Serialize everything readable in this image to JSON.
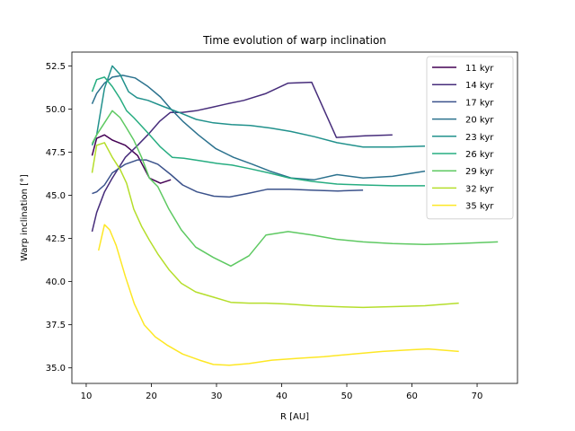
{
  "chart_data": {
    "type": "line",
    "title": "Time evolution of warp inclination",
    "xlabel": "R [AU]",
    "ylabel": "Warp inclination [°]",
    "xlim": [
      7.8,
      76.2
    ],
    "ylim": [
      34.1,
      53.3
    ],
    "xticks": [
      10,
      20,
      30,
      40,
      50,
      60,
      70
    ],
    "yticks": [
      35.0,
      37.5,
      40.0,
      42.5,
      45.0,
      47.5,
      50.0,
      52.5
    ],
    "xtick_labels": [
      "10",
      "20",
      "30",
      "40",
      "50",
      "60",
      "70"
    ],
    "ytick_labels": [
      "35.0",
      "37.5",
      "40.0",
      "42.5",
      "45.0",
      "47.5",
      "50.0",
      "52.5"
    ],
    "grid": false,
    "legend_position": "top-right",
    "series": [
      {
        "name": "11 kyr",
        "color": "#440154",
        "x": [
          10.9,
          11.6,
          12.8,
          14.0,
          16.0,
          17.9,
          19.7,
          21.4,
          23.0
        ],
        "y": [
          47.3,
          48.3,
          48.5,
          48.2,
          47.9,
          47.3,
          46.0,
          45.7,
          45.9
        ]
      },
      {
        "name": "14 kyr",
        "color": "#472d7b",
        "x": [
          10.9,
          11.6,
          12.8,
          14.0,
          16.0,
          17.9,
          19.7,
          21.3,
          22.9,
          24.7,
          26.9,
          29.3,
          31.6,
          34.2,
          37.6,
          41.0,
          44.6,
          48.4,
          52.8,
          57.0
        ],
        "y": [
          42.9,
          44.0,
          45.2,
          46.0,
          47.2,
          47.9,
          48.6,
          49.3,
          49.8,
          49.8,
          49.9,
          50.1,
          50.3,
          50.5,
          50.9,
          51.5,
          51.55,
          48.35,
          48.45,
          48.5
        ]
      },
      {
        "name": "17 kyr",
        "color": "#3b528b",
        "x": [
          10.9,
          11.6,
          12.8,
          14.0,
          16.0,
          17.9,
          19.2,
          21.0,
          23.0,
          24.8,
          27.0,
          29.6,
          32.0,
          34.7,
          37.8,
          41.2,
          44.5,
          48.6,
          52.5
        ],
        "y": [
          45.1,
          45.2,
          45.6,
          46.3,
          46.8,
          47.05,
          47.05,
          46.8,
          46.2,
          45.6,
          45.2,
          44.95,
          44.9,
          45.1,
          45.35,
          45.35,
          45.3,
          45.25,
          45.3
        ]
      },
      {
        "name": "20 kyr",
        "color": "#2c728e",
        "x": [
          10.9,
          11.6,
          12.8,
          14.0,
          15.6,
          17.5,
          19.5,
          21.4,
          23.0,
          24.8,
          27.2,
          29.9,
          32.6,
          35.5,
          38.2,
          41.5,
          45.0,
          48.5,
          52.5,
          57.0,
          62.0
        ],
        "y": [
          50.3,
          50.9,
          51.5,
          51.85,
          51.95,
          51.8,
          51.3,
          50.7,
          50.0,
          49.3,
          48.5,
          47.7,
          47.2,
          46.8,
          46.4,
          46.0,
          45.9,
          46.2,
          46.0,
          46.1,
          46.4
        ]
      },
      {
        "name": "23 kyr",
        "color": "#21918c",
        "x": [
          10.9,
          11.6,
          12.8,
          14.0,
          15.2,
          16.5,
          17.8,
          19.5,
          21.8,
          24.3,
          26.9,
          29.5,
          32.3,
          35.2,
          38.3,
          41.4,
          45.0,
          48.5,
          52.5,
          57.0,
          62.0
        ],
        "y": [
          47.9,
          48.5,
          51.2,
          52.5,
          52.0,
          51.0,
          50.65,
          50.5,
          50.15,
          49.8,
          49.4,
          49.2,
          49.1,
          49.05,
          48.9,
          48.7,
          48.4,
          48.05,
          47.8,
          47.8,
          47.85
        ]
      },
      {
        "name": "26 kyr",
        "color": "#27ad81",
        "x": [
          10.9,
          11.6,
          12.8,
          14.0,
          15.2,
          16.2,
          17.3,
          19.5,
          21.4,
          23.2,
          25.0,
          27.6,
          30.1,
          32.4,
          35.0,
          38.0,
          41.2,
          44.8,
          48.5,
          52.5,
          57.0,
          62.0
        ],
        "y": [
          51.0,
          51.7,
          51.85,
          51.3,
          50.6,
          49.9,
          49.5,
          48.6,
          47.8,
          47.2,
          47.15,
          47.0,
          46.85,
          46.75,
          46.55,
          46.3,
          46.0,
          45.8,
          45.65,
          45.6,
          45.55,
          45.55
        ]
      },
      {
        "name": "29 kyr",
        "color": "#5ec962",
        "x": [
          10.9,
          11.6,
          12.8,
          14.0,
          15.2,
          16.2,
          17.3,
          18.5,
          19.7,
          21.0,
          22.7,
          24.6,
          26.8,
          29.5,
          32.2,
          35.0,
          37.6,
          41.0,
          44.7,
          48.4,
          52.5,
          57.0,
          62.0,
          67.0,
          73.2
        ],
        "y": [
          48.0,
          48.5,
          49.2,
          49.9,
          49.5,
          48.9,
          48.2,
          47.2,
          46.0,
          45.5,
          44.2,
          43.0,
          42.0,
          41.4,
          40.9,
          41.5,
          42.7,
          42.9,
          42.7,
          42.45,
          42.3,
          42.2,
          42.15,
          42.2,
          42.3
        ]
      },
      {
        "name": "32 kyr",
        "color": "#b5de2b",
        "x": [
          10.9,
          11.6,
          12.8,
          14.0,
          15.2,
          16.2,
          17.3,
          18.5,
          19.7,
          21.0,
          22.7,
          24.6,
          26.8,
          29.5,
          32.2,
          35.0,
          37.6,
          41.0,
          44.7,
          48.4,
          52.5,
          57.0,
          62.0,
          67.2
        ],
        "y": [
          46.3,
          47.9,
          48.05,
          47.2,
          46.5,
          45.7,
          44.2,
          43.2,
          42.4,
          41.6,
          40.7,
          39.9,
          39.4,
          39.1,
          38.8,
          38.75,
          38.75,
          38.7,
          38.6,
          38.55,
          38.5,
          38.55,
          38.6,
          38.75
        ]
      },
      {
        "name": "35 kyr",
        "color": "#fde725",
        "x": [
          11.9,
          12.8,
          13.6,
          14.6,
          16.0,
          17.4,
          18.9,
          20.6,
          22.5,
          24.8,
          27.4,
          29.5,
          32.0,
          35.0,
          38.5,
          42.4,
          46.5,
          51.0,
          55.5,
          60.0,
          62.5,
          67.2
        ],
        "y": [
          41.8,
          43.3,
          43.0,
          42.1,
          40.3,
          38.7,
          37.5,
          36.8,
          36.3,
          35.8,
          35.45,
          35.2,
          35.15,
          35.25,
          35.45,
          35.55,
          35.65,
          35.8,
          35.95,
          36.05,
          36.1,
          35.95
        ]
      }
    ]
  }
}
